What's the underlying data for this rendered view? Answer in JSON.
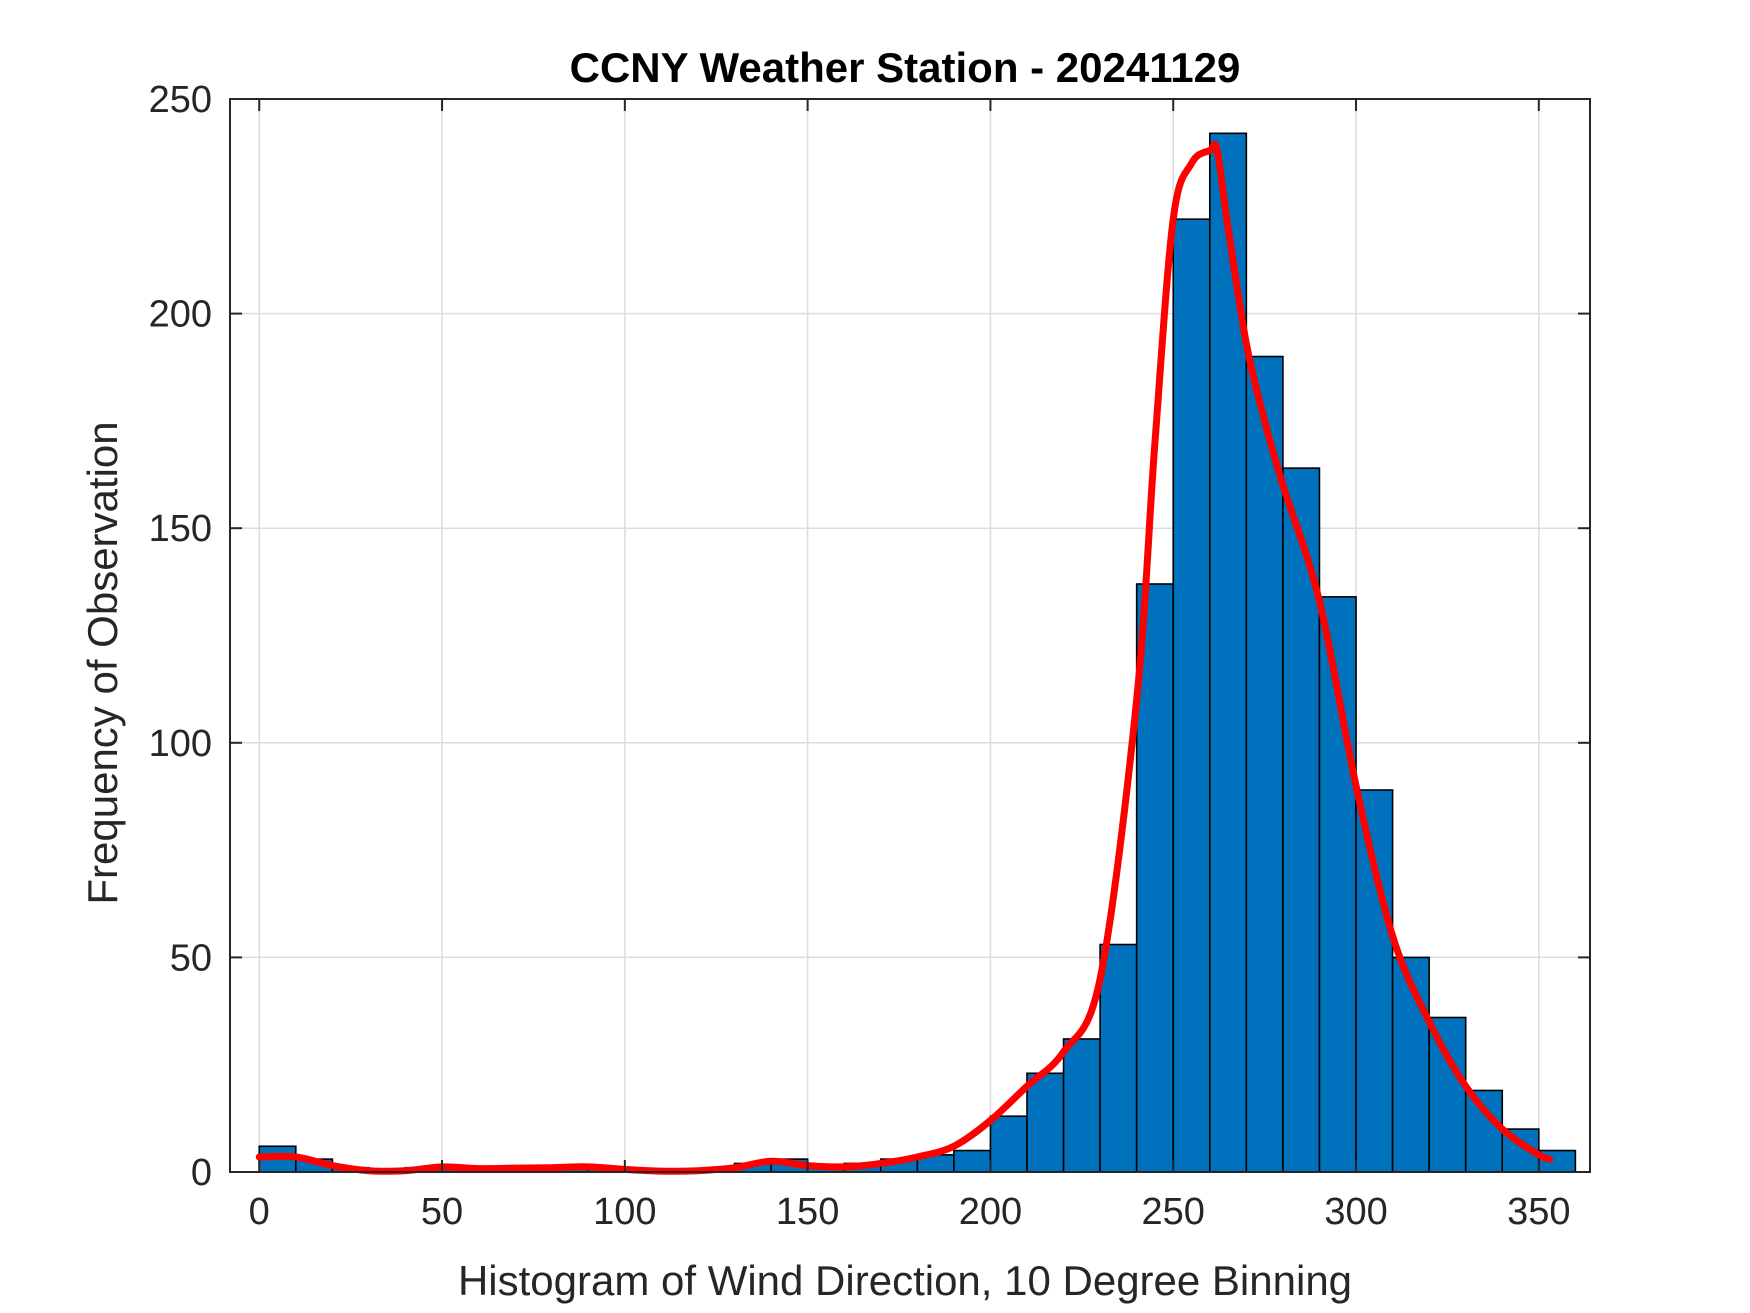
{
  "chart_data": {
    "type": "bar",
    "title": "CCNY Weather Station - 20241129",
    "xlabel": "Histogram of Wind Direction, 10 Degree Binning",
    "ylabel": "Frequency of Observation",
    "xlim": [
      -8,
      364
    ],
    "ylim": [
      0,
      250
    ],
    "xticks": [
      0,
      50,
      100,
      150,
      200,
      250,
      300,
      350
    ],
    "yticks": [
      0,
      50,
      100,
      150,
      200,
      250
    ],
    "grid": true,
    "bin_width": 10,
    "bins": [
      {
        "x": 5,
        "value": 6
      },
      {
        "x": 15,
        "value": 3
      },
      {
        "x": 25,
        "value": 1
      },
      {
        "x": 35,
        "value": 0
      },
      {
        "x": 45,
        "value": 1
      },
      {
        "x": 55,
        "value": 1
      },
      {
        "x": 65,
        "value": 1
      },
      {
        "x": 75,
        "value": 1
      },
      {
        "x": 85,
        "value": 1
      },
      {
        "x": 95,
        "value": 1
      },
      {
        "x": 105,
        "value": 0
      },
      {
        "x": 115,
        "value": 0
      },
      {
        "x": 125,
        "value": 0
      },
      {
        "x": 135,
        "value": 2
      },
      {
        "x": 145,
        "value": 3
      },
      {
        "x": 155,
        "value": 1
      },
      {
        "x": 165,
        "value": 2
      },
      {
        "x": 175,
        "value": 3
      },
      {
        "x": 185,
        "value": 4
      },
      {
        "x": 195,
        "value": 5
      },
      {
        "x": 205,
        "value": 13
      },
      {
        "x": 215,
        "value": 23
      },
      {
        "x": 225,
        "value": 31
      },
      {
        "x": 235,
        "value": 53
      },
      {
        "x": 245,
        "value": 137
      },
      {
        "x": 255,
        "value": 222
      },
      {
        "x": 265,
        "value": 242
      },
      {
        "x": 275,
        "value": 190
      },
      {
        "x": 285,
        "value": 164
      },
      {
        "x": 295,
        "value": 134
      },
      {
        "x": 305,
        "value": 89
      },
      {
        "x": 315,
        "value": 50
      },
      {
        "x": 325,
        "value": 36
      },
      {
        "x": 335,
        "value": 19
      },
      {
        "x": 345,
        "value": 10
      },
      {
        "x": 355,
        "value": 5
      }
    ],
    "fit_curve": {
      "x": [
        0,
        10,
        20,
        30,
        40,
        50,
        60,
        70,
        80,
        90,
        100,
        110,
        120,
        130,
        140,
        150,
        160,
        170,
        180,
        190,
        200,
        210,
        220,
        230,
        240,
        245,
        250,
        255,
        260,
        262,
        265,
        270,
        275,
        280,
        290,
        300,
        310,
        320,
        330,
        340,
        350,
        353
      ],
      "y": [
        3.5,
        3.5,
        1.5,
        0.3,
        0.3,
        1.2,
        0.8,
        0.9,
        1.0,
        1.2,
        0.6,
        0.2,
        0.3,
        1.0,
        2.5,
        1.5,
        1.2,
        2.0,
        3.5,
        6,
        12,
        20,
        28,
        45,
        110,
        170,
        222,
        235,
        238,
        238,
        220,
        193,
        175,
        160,
        133,
        90,
        55,
        35,
        20,
        10,
        4,
        3
      ],
      "color": "#ff0000"
    },
    "bar_color": "#0072BD"
  }
}
